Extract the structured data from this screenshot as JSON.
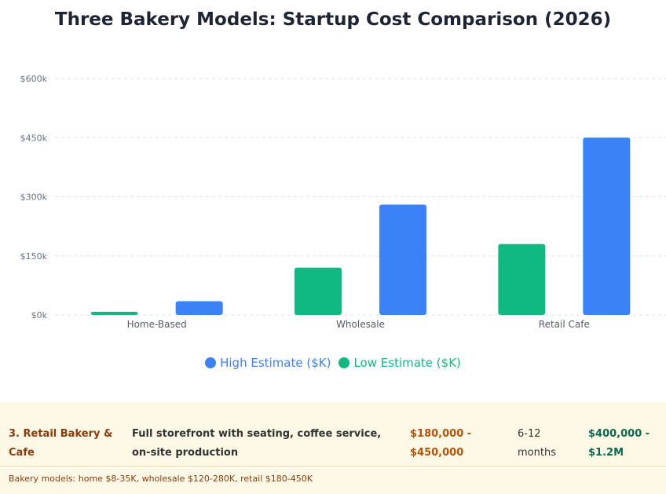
{
  "chart_data": {
    "type": "bar",
    "title": "Three Bakery Models: Startup Cost Comparison (2026)",
    "categories": [
      "Home-Based",
      "Wholesale",
      "Retail Cafe"
    ],
    "series": [
      {
        "name": "Low Estimate ($K)",
        "color": "#10b981",
        "values": [
          8,
          120,
          180
        ]
      },
      {
        "name": "High Estimate ($K)",
        "color": "#3b82f6",
        "values": [
          35,
          280,
          450
        ]
      }
    ],
    "y_ticks": [
      0,
      150,
      300,
      450,
      600
    ],
    "y_tick_labels": [
      "$0k",
      "$150k",
      "$300k",
      "$450k",
      "$600k"
    ],
    "ylim": [
      0,
      600
    ],
    "grid": true,
    "legend_position": "bottom",
    "legend_order": [
      "High Estimate ($K)",
      "Low Estimate ($K)"
    ]
  },
  "table": {
    "row": {
      "model": "3. Retail Bakery & Cafe",
      "description": "Full storefront with seating, coffee service, on-site production",
      "cost": "$180,000 - $450,000",
      "timeline": "6-12 months",
      "revenue": "$400,000 - $1.2M"
    },
    "footnote": "Bakery models: home $8-35K, wholesale $120-280K, retail $180-450K"
  }
}
